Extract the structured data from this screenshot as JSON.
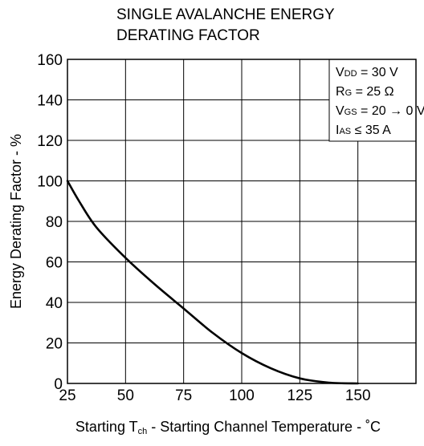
{
  "chart_data": {
    "type": "line",
    "title": [
      "SINGLE AVALANCHE ENERGY",
      "DERATING FACTOR"
    ],
    "xlabel": {
      "prefix": "Starting T",
      "sub": "ch",
      "suffix": " - Starting Channel Temperature - ˚C"
    },
    "ylabel": "Energy Derating Factor - %",
    "xlim": [
      25,
      175
    ],
    "ylim": [
      0,
      160
    ],
    "xticks": [
      25,
      50,
      75,
      100,
      125,
      150
    ],
    "yticks": [
      0,
      20,
      40,
      60,
      80,
      100,
      120,
      140,
      160
    ],
    "grid": true,
    "series": [
      {
        "x": [
          25,
          30,
          37.5,
          50,
          62.5,
          75,
          87.5,
          100,
          112.5,
          125,
          137.5,
          150
        ],
        "y": [
          100,
          90,
          77,
          62,
          49,
          37,
          25,
          15,
          7.5,
          2.5,
          0.4,
          0
        ],
        "color": "#000000"
      }
    ],
    "legend_box": {
      "position": "top-right",
      "lines": [
        {
          "main": "V",
          "sub": "DD",
          "rest": " = 30 V"
        },
        {
          "main": "R",
          "sub": "G",
          "rest": " = 25 Ω"
        },
        {
          "main": "V",
          "sub": "GS",
          "rest": " = 20 → 0 V"
        },
        {
          "main": "I",
          "sub": "AS",
          "rest": " ≤ 35 A"
        }
      ]
    }
  }
}
